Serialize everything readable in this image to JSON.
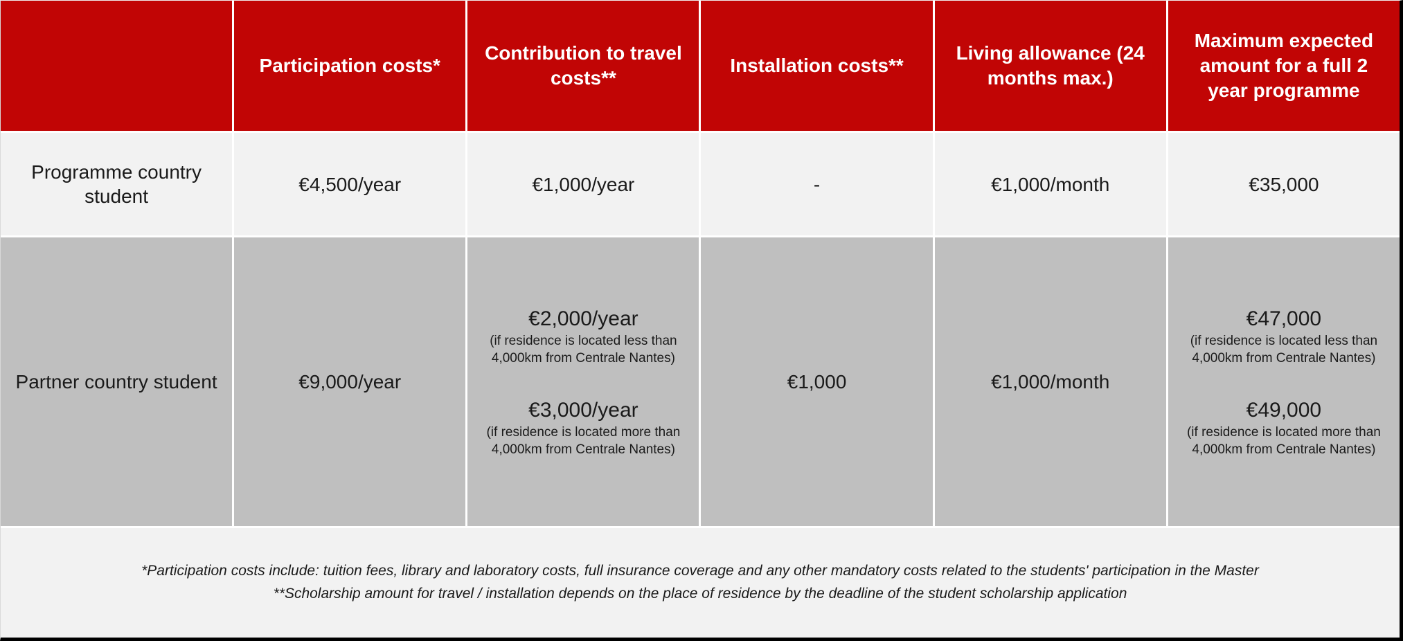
{
  "colors": {
    "header_bg": "#C10505",
    "header_text": "#FFFFFF",
    "row1_bg": "#F2F2F2",
    "row2_bg": "#BFBFBF",
    "body_text": "#1A1A1A",
    "frame_border": "#000000"
  },
  "table": {
    "columns": [
      "",
      "Participation costs*",
      "Contribution to travel costs**",
      "Installation costs**",
      "Living allowance (24 months max.)",
      "Maximum expected amount for a full 2 year programme"
    ],
    "rows": [
      {
        "label": "Programme country student",
        "participation": "€4,500/year",
        "travel": "€1,000/year",
        "installation": "-",
        "living": "€1,000/month",
        "maximum": "€35,000"
      },
      {
        "label": "Partner country student",
        "participation": "€9,000/year",
        "installation": "€1,000",
        "living": "€1,000/month",
        "travel_options": [
          {
            "amount": "€2,000/year",
            "note": "(if residence is located less than 4,000km from Centrale Nantes)"
          },
          {
            "amount": "€3,000/year",
            "note": "(if residence is located more than 4,000km from Centrale Nantes)"
          }
        ],
        "maximum_options": [
          {
            "amount": "€47,000",
            "note": "(if residence is located less than 4,000km from Centrale Nantes)"
          },
          {
            "amount": "€49,000",
            "note": "(if residence is located more than 4,000km from Centrale Nantes)"
          }
        ]
      }
    ],
    "footnotes": [
      "*Participation costs include: tuition fees, library and laboratory costs, full insurance coverage and any other mandatory costs related to the students' participation in the Master",
      "**Scholarship amount for travel / installation depends on the place of residence by the deadline of the student scholarship application"
    ]
  }
}
